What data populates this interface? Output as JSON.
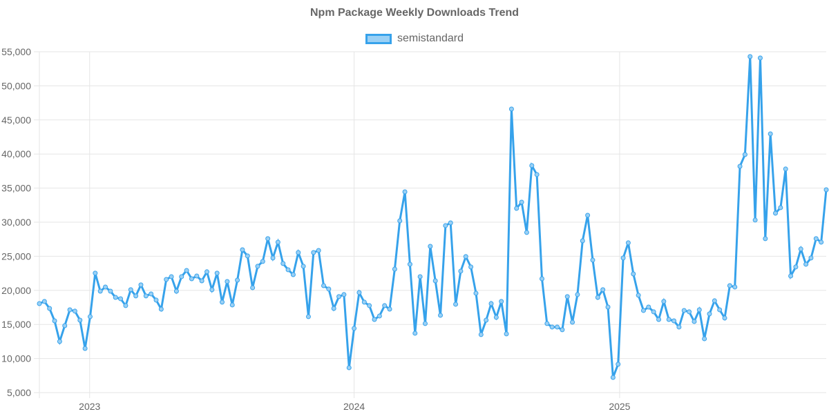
{
  "chart_data": {
    "type": "line",
    "title": "Npm Package Weekly Downloads Trend",
    "xlabel": "",
    "ylabel": "",
    "ylim": [
      5000,
      55000
    ],
    "y_ticks": [
      "5,000",
      "10,000",
      "15,000",
      "20,000",
      "25,000",
      "30,000",
      "35,000",
      "40,000",
      "45,000",
      "50,000",
      "55,000"
    ],
    "y_tick_values": [
      5000,
      10000,
      15000,
      20000,
      25000,
      30000,
      35000,
      40000,
      45000,
      50000,
      55000
    ],
    "x_ticks": [
      {
        "label": "2023",
        "week_index": 9.9
      },
      {
        "label": "2024",
        "week_index": 62.0
      },
      {
        "label": "2025",
        "week_index": 114.3
      }
    ],
    "grid": true,
    "legend_position": "top-center",
    "series": [
      {
        "name": "semistandard",
        "color": "#36a2eb",
        "fill": "#9ad0f5",
        "values": [
          18060,
          18370,
          17350,
          15530,
          12500,
          14820,
          17150,
          16950,
          15630,
          11480,
          16140,
          22520,
          19880,
          20490,
          19880,
          18970,
          18770,
          17760,
          20090,
          19180,
          20800,
          19180,
          19480,
          18570,
          17250,
          21600,
          22010,
          19880,
          22010,
          22920,
          21700,
          22110,
          21400,
          22720,
          20090,
          22520,
          18270,
          21300,
          17860,
          21500,
          25950,
          25050,
          20390,
          23530,
          24240,
          27580,
          24750,
          27070,
          23940,
          23020,
          22310,
          25550,
          23530,
          16140,
          25550,
          25850,
          20690,
          20190,
          17350,
          19080,
          19380,
          8650,
          14420,
          19680,
          18270,
          17760,
          15730,
          16240,
          17760,
          17250,
          23120,
          30200,
          34450,
          23830,
          13710,
          22010,
          15130,
          26460,
          21400,
          16340,
          29500,
          29900,
          17960,
          22820,
          24950,
          23430,
          19580,
          13510,
          15630,
          18060,
          16040,
          18370,
          13610,
          46600,
          32030,
          32940,
          28490,
          38300,
          36990,
          21700,
          15130,
          14620,
          14620,
          14220,
          19080,
          15330,
          19380,
          27270,
          31010,
          24440,
          18970,
          20090,
          17550,
          7230,
          9160,
          24750,
          26970,
          22410,
          19280,
          17050,
          17550,
          16850,
          15730,
          18370,
          15730,
          15530,
          14620,
          17050,
          16850,
          15430,
          17150,
          12900,
          16550,
          18470,
          17150,
          15940,
          20690,
          20490,
          38200,
          39920,
          54290,
          30310,
          54090,
          27580,
          42960,
          31320,
          32130,
          37800,
          22110,
          23430,
          26060,
          23830,
          24750,
          27580,
          27070,
          34760
        ]
      }
    ]
  }
}
